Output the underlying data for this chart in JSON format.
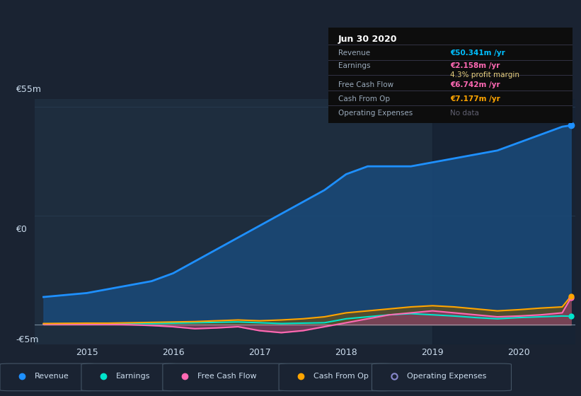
{
  "bg_color": "#1a2332",
  "plot_bg_color": "#1e2d3e",
  "plot_bg_color_dark": "#152030",
  "title": "Jun 30 2020",
  "table_data": {
    "Revenue": {
      "value": "€50.341m /yr",
      "color": "#00bfff"
    },
    "Earnings": {
      "value": "€2.158m /yr",
      "color": "#ff69b4"
    },
    "profit_margin": {
      "value": "4.3% profit margin",
      "color": "#ffffff"
    },
    "Free Cash Flow": {
      "value": "€6.742m /yr",
      "color": "#ff69b4"
    },
    "Cash From Op": {
      "value": "€7.177m /yr",
      "color": "#ffa500"
    },
    "Operating Expenses": {
      "value": "No data",
      "color": "#808080"
    }
  },
  "ylabel_top": "€55m",
  "ylabel_zero": "€0",
  "ylabel_neg": "-€5m",
  "ylim": [
    -5,
    57
  ],
  "years": [
    2014.5,
    2015.0,
    2015.25,
    2015.5,
    2015.75,
    2016.0,
    2016.25,
    2016.5,
    2016.75,
    2017.0,
    2017.25,
    2017.5,
    2017.75,
    2018.0,
    2018.25,
    2018.5,
    2018.75,
    2019.0,
    2019.25,
    2019.5,
    2019.75,
    2020.0,
    2020.25,
    2020.5,
    2020.6
  ],
  "revenue": [
    7,
    8,
    9,
    10,
    11,
    13,
    16,
    19,
    22,
    25,
    28,
    31,
    34,
    38,
    40,
    40,
    40,
    41,
    42,
    43,
    44,
    46,
    48,
    50,
    50.341
  ],
  "earnings": [
    0.2,
    0.3,
    0.3,
    0.3,
    0.3,
    0.4,
    0.5,
    0.6,
    0.7,
    0.5,
    0.3,
    0.4,
    0.5,
    1.5,
    2.0,
    2.5,
    2.8,
    2.5,
    2.2,
    1.8,
    1.5,
    1.8,
    2.0,
    2.2,
    2.158
  ],
  "free_cash_flow": [
    0.1,
    0.1,
    0.1,
    0.0,
    -0.2,
    -0.5,
    -1.0,
    -0.8,
    -0.5,
    -1.5,
    -2.0,
    -1.5,
    -0.5,
    0.5,
    1.5,
    2.5,
    3.0,
    3.5,
    3.0,
    2.5,
    2.0,
    2.2,
    2.5,
    3.0,
    6.742
  ],
  "cash_from_op": [
    0.3,
    0.4,
    0.4,
    0.5,
    0.6,
    0.7,
    0.8,
    1.0,
    1.2,
    1.0,
    1.2,
    1.5,
    2.0,
    3.0,
    3.5,
    4.0,
    4.5,
    4.8,
    4.5,
    4.0,
    3.5,
    3.8,
    4.2,
    4.5,
    7.177
  ],
  "revenue_color": "#1e90ff",
  "earnings_color": "#00e5cc",
  "fcf_color": "#ff69b4",
  "cfop_color": "#ffa500",
  "opex_color": "#8888cc",
  "revenue_fill_color": "#1a4a7a",
  "earnings_fill_color": "#2a6060",
  "fcf_fill_color": "#804060",
  "cfop_fill_color": "#605020",
  "legend_items": [
    {
      "label": "Revenue",
      "color": "#1e90ff"
    },
    {
      "label": "Earnings",
      "color": "#00e5cc"
    },
    {
      "label": "Free Cash Flow",
      "color": "#ff69b4"
    },
    {
      "label": "Cash From Op",
      "color": "#ffa500"
    },
    {
      "label": "Operating Expenses",
      "color": "#8888cc"
    }
  ],
  "dark_shade_start": 2019.0,
  "xticks": [
    2015,
    2016,
    2017,
    2018,
    2019,
    2020
  ],
  "grid_color": "#2a3f55",
  "text_color": "#8899aa",
  "text_color_light": "#ccddee",
  "divider_color": "#333344"
}
